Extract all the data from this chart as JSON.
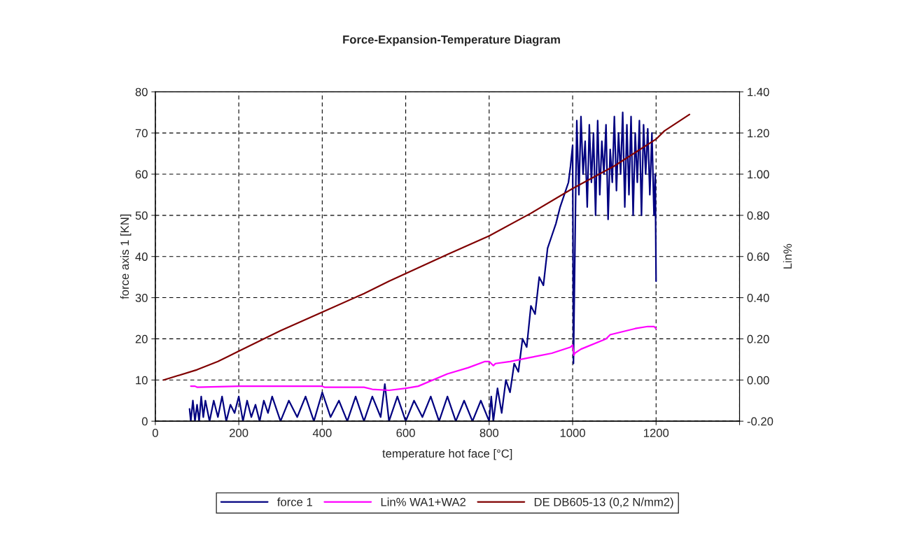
{
  "chart_data": {
    "type": "line",
    "title": "Force-Expansion-Temperature Diagram",
    "xlabel": "temperature hot face [°C]",
    "ylabel": "force axis 1 [KN]",
    "y2label": "Lin%",
    "xlim": [
      0,
      1400
    ],
    "xticks": [
      0,
      200,
      400,
      600,
      800,
      1000,
      1200,
      {
        "value": 1400,
        "label": null
      }
    ],
    "ylim": [
      0,
      80
    ],
    "yticks": [
      0,
      10,
      20,
      30,
      40,
      50,
      60,
      70,
      80
    ],
    "y2lim": [
      -0.2,
      1.4
    ],
    "y2ticks": [
      {
        "value": -0.2,
        "label": "-0.20"
      },
      {
        "value": 0,
        "label": "0.00"
      },
      {
        "value": 0.2,
        "label": "0.20"
      },
      {
        "value": 0.4,
        "label": "0.40"
      },
      {
        "value": 0.6,
        "label": "0.60"
      },
      {
        "value": 0.8,
        "label": "0.80"
      },
      {
        "value": 1.0,
        "label": "1.00"
      },
      {
        "value": 1.2,
        "label": "1.20"
      },
      {
        "value": 1.4,
        "label": "1.40"
      }
    ],
    "grid": true,
    "legend": "bottom",
    "line_style": "solid",
    "series": [
      {
        "name": "force 1",
        "color": "#000080",
        "x": [
          82,
          85,
          90,
          95,
          100,
          105,
          110,
          115,
          120,
          130,
          140,
          150,
          160,
          170,
          180,
          190,
          200,
          210,
          220,
          230,
          240,
          250,
          260,
          270,
          280,
          300,
          320,
          340,
          360,
          380,
          400,
          420,
          440,
          460,
          480,
          500,
          520,
          540,
          550,
          560,
          580,
          600,
          620,
          640,
          660,
          680,
          700,
          720,
          740,
          760,
          780,
          800,
          805,
          810,
          820,
          830,
          840,
          850,
          860,
          870,
          880,
          890,
          900,
          910,
          920,
          930,
          940,
          950,
          960,
          970,
          980,
          990,
          995,
          1000,
          1002,
          1004,
          1006,
          1008,
          1010,
          1015,
          1020,
          1025,
          1030,
          1035,
          1040,
          1045,
          1050,
          1055,
          1060,
          1065,
          1070,
          1075,
          1080,
          1085,
          1090,
          1095,
          1100,
          1105,
          1110,
          1115,
          1120,
          1125,
          1130,
          1135,
          1140,
          1145,
          1150,
          1155,
          1160,
          1165,
          1170,
          1175,
          1180,
          1185,
          1190,
          1195,
          1198,
          1200
        ],
        "values": [
          3,
          0,
          5,
          0,
          4,
          0,
          6,
          1,
          5,
          0,
          5,
          1,
          6,
          0,
          4,
          2,
          6,
          0,
          5,
          1,
          4,
          0,
          5,
          2,
          6,
          0,
          5,
          1,
          6,
          0,
          7,
          1,
          5,
          0,
          6,
          0,
          6,
          1,
          9,
          0,
          6,
          0,
          5,
          1,
          6,
          0,
          6,
          0,
          5,
          0,
          5,
          0,
          6,
          0,
          8,
          2,
          10,
          7,
          14,
          12,
          20,
          18,
          28,
          26,
          35,
          33,
          42,
          45,
          48,
          52,
          55,
          58,
          62,
          67,
          14,
          30,
          45,
          60,
          73,
          55,
          74,
          60,
          68,
          52,
          72,
          58,
          70,
          50,
          73,
          55,
          68,
          60,
          72,
          49,
          66,
          58,
          74,
          56,
          70,
          60,
          75,
          52,
          72,
          55,
          74,
          50,
          70,
          58,
          73,
          50,
          72,
          60,
          71,
          55,
          70,
          50,
          60,
          34
        ]
      },
      {
        "name": "Lin% WA1+WA2",
        "color": "#ff00ff",
        "axis": "y2",
        "x": [
          85,
          95,
          100,
          200,
          300,
          400,
          405,
          500,
          520,
          560,
          600,
          630,
          700,
          750,
          790,
          800,
          805,
          810,
          815,
          850,
          900,
          950,
          995,
          1000,
          1003,
          1005,
          1020,
          1080,
          1090,
          1150,
          1180,
          1195,
          1200
        ],
        "values": [
          -0.03,
          -0.03,
          -0.035,
          -0.03,
          -0.03,
          -0.03,
          -0.035,
          -0.035,
          -0.045,
          -0.05,
          -0.04,
          -0.03,
          0.03,
          0.06,
          0.09,
          0.09,
          0.08,
          0.07,
          0.08,
          0.09,
          0.11,
          0.13,
          0.16,
          0.17,
          0.12,
          0.13,
          0.15,
          0.2,
          0.22,
          0.25,
          0.26,
          0.26,
          0.25
        ]
      },
      {
        "name": "DE DB605-13 (0,2 N/mm2)",
        "color": "#800000",
        "axis": "y2",
        "x": [
          20,
          100,
          150,
          200,
          300,
          400,
          500,
          560,
          700,
          800,
          900,
          1000,
          1100,
          1200,
          1220,
          1280
        ],
        "values": [
          0.0,
          0.05,
          0.09,
          0.14,
          0.24,
          0.33,
          0.42,
          0.48,
          0.61,
          0.7,
          0.81,
          0.93,
          1.04,
          1.17,
          1.21,
          1.29
        ]
      }
    ]
  }
}
